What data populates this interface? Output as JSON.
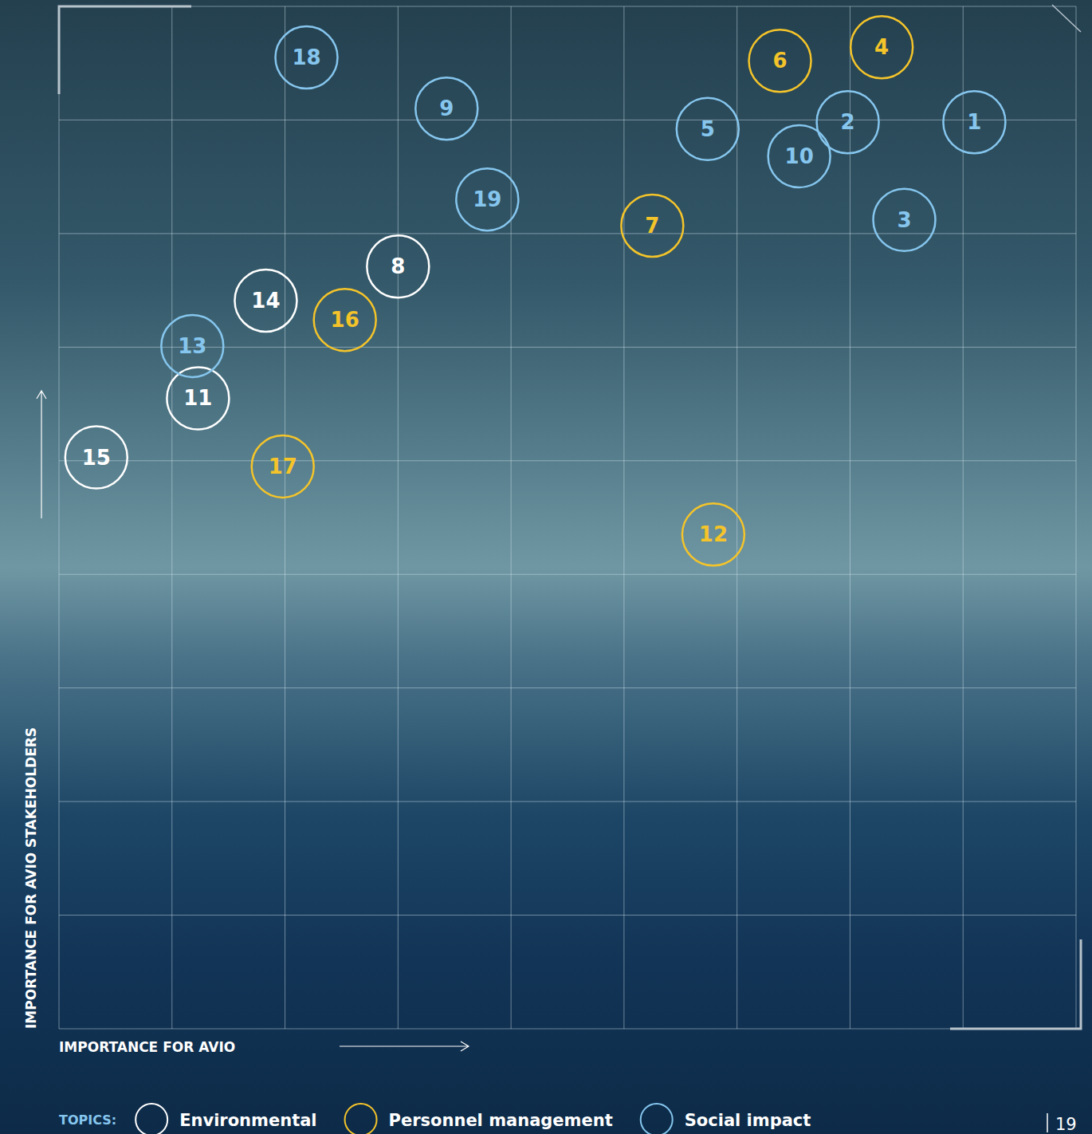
{
  "chart_data": {
    "type": "scatter",
    "x_label": "IMPORTANCE FOR AVIO",
    "y_label": "IMPORTANCE FOR AVIO STAKEHOLDERS",
    "xlim": [
      0,
      9
    ],
    "ylim": [
      0,
      9
    ],
    "xticks": [
      0,
      1,
      2,
      3,
      4,
      5,
      6,
      7,
      8,
      9
    ],
    "yticks": [
      0,
      1,
      2,
      3,
      4,
      5,
      6,
      7,
      8,
      9
    ],
    "grid": true,
    "tick_labels": false,
    "legend": "bottom",
    "legend_title": "TOPICS:",
    "page_number": "19",
    "series": [
      {
        "name": "Environmental",
        "color": "#ffffff",
        "marker": "ring",
        "labels": [
          "8",
          "14",
          "11",
          "15"
        ],
        "x": [
          3.0,
          1.83,
          1.23,
          0.33
        ],
        "y": [
          6.71,
          6.41,
          5.55,
          5.03
        ]
      },
      {
        "name": "Personnel management",
        "color": "#f4c42a",
        "marker": "ring",
        "labels": [
          "16",
          "17",
          "12",
          "7",
          "6",
          "4"
        ],
        "x": [
          2.53,
          1.98,
          5.79,
          5.25,
          6.38,
          7.28
        ],
        "y": [
          6.24,
          4.95,
          4.35,
          7.07,
          8.52,
          8.64
        ]
      },
      {
        "name": "Social impact",
        "color": "#86c6ee",
        "marker": "ring",
        "labels": [
          "18",
          "9",
          "19",
          "13",
          "5",
          "10",
          "2",
          "1",
          "3"
        ],
        "x": [
          2.19,
          3.43,
          3.79,
          1.18,
          5.74,
          6.55,
          6.98,
          8.1,
          7.48
        ],
        "y": [
          8.55,
          8.1,
          7.3,
          6.01,
          7.92,
          7.68,
          7.98,
          7.98,
          7.12
        ]
      }
    ]
  }
}
